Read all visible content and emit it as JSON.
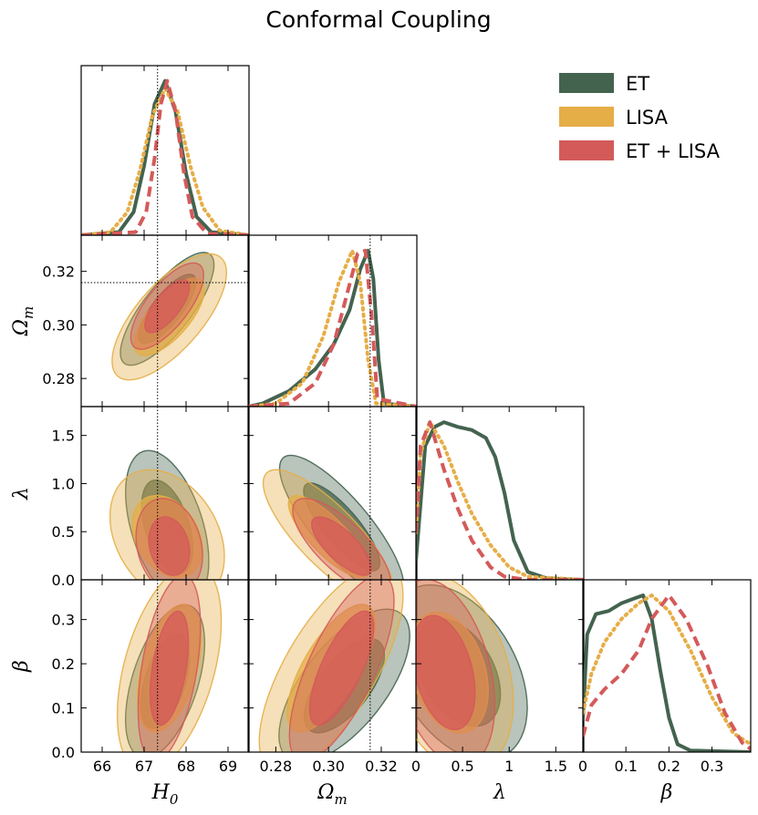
{
  "chart_data": {
    "type": "corner",
    "title": "Conformal Coupling",
    "parameters": [
      {
        "key": "H0",
        "label": "H",
        "sub": "0",
        "range": [
          65.5,
          69.5
        ],
        "ticks": [
          66,
          67,
          68,
          69
        ],
        "tick_labels": [
          "66",
          "67",
          "68",
          "69"
        ],
        "fiducial": 67.32
      },
      {
        "key": "Om",
        "label": "Ω",
        "sub": "m",
        "range": [
          0.2695,
          0.3335
        ],
        "ticks": [
          0.28,
          0.3,
          0.32
        ],
        "tick_labels": [
          "0.28",
          "0.30",
          "0.32"
        ],
        "fiducial": 0.3158
      },
      {
        "key": "lam",
        "label": "λ",
        "sub": "",
        "range": [
          0,
          1.8
        ],
        "ticks": [
          0,
          0.5,
          1.0,
          1.5
        ],
        "tick_labels": [
          "0",
          "0.5",
          "1",
          "1.5"
        ],
        "y_tick_labels": [
          "0.0",
          "0.5",
          "1.0",
          "1.5"
        ],
        "fiducial": null
      },
      {
        "key": "beta",
        "label": "β",
        "sub": "",
        "range": [
          0,
          0.39
        ],
        "ticks": [
          0,
          0.1,
          0.2,
          0.3
        ],
        "tick_labels": [
          "0",
          "0.1",
          "0.2",
          "0.3"
        ],
        "y_tick_labels": [
          "0.0",
          "0.1",
          "0.2",
          "0.3"
        ],
        "fiducial": null
      }
    ],
    "series": [
      {
        "name": "ET",
        "color": "#44634f",
        "dash": "solid"
      },
      {
        "name": "LISA",
        "color": "#e6ae47",
        "dash": "dotted"
      },
      {
        "name": "ET + LISA",
        "color": "#d45a5a",
        "dash": "dashed"
      }
    ],
    "marginals": {
      "H0": {
        "ET": {
          "x": [
            65.5,
            66.4,
            66.75,
            67.0,
            67.25,
            67.5,
            67.75,
            68.0,
            68.25,
            68.6,
            69.5
          ],
          "y": [
            0,
            0.02,
            0.15,
            0.45,
            0.85,
            1.0,
            0.8,
            0.4,
            0.12,
            0.02,
            0
          ]
        },
        "LISA": {
          "x": [
            65.5,
            66.2,
            66.6,
            66.9,
            67.2,
            67.5,
            67.8,
            68.1,
            68.4,
            68.8,
            69.5
          ],
          "y": [
            0,
            0.02,
            0.15,
            0.42,
            0.78,
            0.95,
            0.8,
            0.45,
            0.18,
            0.03,
            0
          ]
        },
        "ET + LISA": {
          "x": [
            65.5,
            66.8,
            67.05,
            67.25,
            67.4,
            67.55,
            67.75,
            67.95,
            68.15,
            68.5,
            69.5
          ],
          "y": [
            0,
            0.02,
            0.15,
            0.5,
            0.85,
            1.0,
            0.8,
            0.4,
            0.12,
            0.01,
            0
          ]
        }
      },
      "Om": {
        "ET": {
          "x": [
            0.2695,
            0.275,
            0.285,
            0.295,
            0.302,
            0.308,
            0.312,
            0.315,
            0.317,
            0.319,
            0.321,
            0.3335
          ],
          "y": [
            0,
            0.02,
            0.1,
            0.24,
            0.4,
            0.62,
            0.88,
            1.0,
            0.82,
            0.3,
            0.02,
            0
          ]
        },
        "LISA": {
          "x": [
            0.2695,
            0.28,
            0.29,
            0.298,
            0.304,
            0.309,
            0.312,
            0.315,
            0.318,
            0.3335
          ],
          "y": [
            0,
            0.02,
            0.15,
            0.45,
            0.8,
            1.0,
            0.8,
            0.3,
            0.02,
            0
          ]
        },
        "ET + LISA": {
          "x": [
            0.2695,
            0.285,
            0.295,
            0.302,
            0.307,
            0.311,
            0.314,
            0.3165,
            0.3185,
            0.3335
          ],
          "y": [
            0,
            0.02,
            0.15,
            0.4,
            0.72,
            0.98,
            1.0,
            0.55,
            0.05,
            0
          ]
        }
      },
      "lam": {
        "ET": {
          "x": [
            0,
            0.1,
            0.2,
            0.3,
            0.45,
            0.6,
            0.75,
            0.85,
            0.95,
            1.05,
            1.2,
            1.4,
            1.8
          ],
          "y": [
            0.12,
            0.85,
            0.97,
            1.0,
            0.97,
            0.95,
            0.9,
            0.78,
            0.55,
            0.25,
            0.05,
            0.01,
            0
          ]
        },
        "LISA": {
          "x": [
            0,
            0.05,
            0.15,
            0.2,
            0.3,
            0.45,
            0.6,
            0.8,
            1.0,
            1.2,
            1.8
          ],
          "y": [
            0.3,
            0.8,
            1.0,
            0.95,
            0.85,
            0.62,
            0.42,
            0.22,
            0.08,
            0.02,
            0
          ]
        },
        "ET + LISA": {
          "x": [
            0,
            0.05,
            0.15,
            0.2,
            0.3,
            0.45,
            0.6,
            0.8,
            0.95,
            1.2,
            1.8
          ],
          "y": [
            0.3,
            0.85,
            1.0,
            0.9,
            0.7,
            0.45,
            0.25,
            0.08,
            0.02,
            0,
            0
          ]
        }
      },
      "beta": {
        "ET": {
          "x": [
            0,
            0.01,
            0.03,
            0.06,
            0.09,
            0.12,
            0.14,
            0.16,
            0.18,
            0.2,
            0.22,
            0.25,
            0.39
          ],
          "y": [
            0.2,
            0.75,
            0.88,
            0.9,
            0.95,
            0.98,
            1.0,
            0.85,
            0.52,
            0.22,
            0.05,
            0.01,
            0
          ]
        },
        "LISA": {
          "x": [
            0,
            0.02,
            0.05,
            0.09,
            0.13,
            0.16,
            0.2,
            0.25,
            0.3,
            0.35,
            0.39
          ],
          "y": [
            0.25,
            0.5,
            0.7,
            0.85,
            0.95,
            1.0,
            0.9,
            0.65,
            0.35,
            0.12,
            0.05
          ]
        },
        "ET + LISA": {
          "x": [
            0,
            0.02,
            0.05,
            0.09,
            0.13,
            0.16,
            0.2,
            0.24,
            0.29,
            0.33,
            0.37,
            0.39
          ],
          "y": [
            0.1,
            0.3,
            0.4,
            0.5,
            0.65,
            0.85,
            1.0,
            0.85,
            0.55,
            0.25,
            0.06,
            0.02
          ]
        }
      }
    },
    "contours": [
      {
        "x": "H0",
        "y": "Om",
        "series": "ET",
        "cx": 67.55,
        "cy": 0.306,
        "sx": 0.45,
        "sy": 0.0085,
        "rho": 0.78
      },
      {
        "x": "H0",
        "y": "Om",
        "series": "LISA",
        "cx": 67.6,
        "cy": 0.303,
        "sx": 0.55,
        "sy": 0.0095,
        "rho": 0.7
      },
      {
        "x": "H0",
        "y": "Om",
        "series": "ET + LISA",
        "cx": 67.55,
        "cy": 0.307,
        "sx": 0.35,
        "sy": 0.0065,
        "rho": 0.72
      },
      {
        "x": "H0",
        "y": "lam",
        "series": "ET",
        "cx": 67.55,
        "cy": 0.55,
        "sx": 0.4,
        "sy": 0.32,
        "rho": -0.45
      },
      {
        "x": "H0",
        "y": "lam",
        "series": "LISA",
        "cx": 67.55,
        "cy": 0.45,
        "sx": 0.55,
        "sy": 0.28,
        "rho": -0.3
      },
      {
        "x": "H0",
        "y": "lam",
        "series": "ET + LISA",
        "cx": 67.6,
        "cy": 0.35,
        "sx": 0.32,
        "sy": 0.2,
        "rho": -0.2
      },
      {
        "x": "Om",
        "y": "lam",
        "series": "ET",
        "cx": 0.305,
        "cy": 0.55,
        "sx": 0.0095,
        "sy": 0.3,
        "rho": -0.82
      },
      {
        "x": "Om",
        "y": "lam",
        "series": "LISA",
        "cx": 0.3,
        "cy": 0.45,
        "sx": 0.01,
        "sy": 0.28,
        "rho": -0.8
      },
      {
        "x": "Om",
        "y": "lam",
        "series": "ET + LISA",
        "cx": 0.305,
        "cy": 0.35,
        "sx": 0.0075,
        "sy": 0.2,
        "rho": -0.75
      },
      {
        "x": "H0",
        "y": "beta",
        "series": "ET",
        "cx": 67.5,
        "cy": 0.16,
        "sx": 0.38,
        "sy": 0.07,
        "rho": 0.5
      },
      {
        "x": "H0",
        "y": "beta",
        "series": "LISA",
        "cx": 67.6,
        "cy": 0.19,
        "sx": 0.5,
        "sy": 0.095,
        "rho": 0.45
      },
      {
        "x": "H0",
        "y": "beta",
        "series": "ET + LISA",
        "cx": 67.6,
        "cy": 0.19,
        "sx": 0.3,
        "sy": 0.085,
        "rho": 0.45
      },
      {
        "x": "Om",
        "y": "beta",
        "series": "ET",
        "cx": 0.306,
        "cy": 0.15,
        "sx": 0.01,
        "sy": 0.07,
        "rho": 0.65
      },
      {
        "x": "Om",
        "y": "beta",
        "series": "LISA",
        "cx": 0.301,
        "cy": 0.19,
        "sx": 0.011,
        "sy": 0.095,
        "rho": 0.7
      },
      {
        "x": "Om",
        "y": "beta",
        "series": "ET + LISA",
        "cx": 0.305,
        "cy": 0.19,
        "sx": 0.008,
        "sy": 0.085,
        "rho": 0.72
      },
      {
        "x": "lam",
        "y": "beta",
        "series": "ET",
        "cx": 0.45,
        "cy": 0.18,
        "sx": 0.3,
        "sy": 0.08,
        "rho": -0.4
      },
      {
        "x": "lam",
        "y": "beta",
        "series": "LISA",
        "cx": 0.35,
        "cy": 0.18,
        "sx": 0.28,
        "sy": 0.09,
        "rho": -0.3
      },
      {
        "x": "lam",
        "y": "beta",
        "series": "ET + LISA",
        "cx": 0.3,
        "cy": 0.18,
        "sx": 0.22,
        "sy": 0.085,
        "rho": -0.35
      }
    ]
  }
}
